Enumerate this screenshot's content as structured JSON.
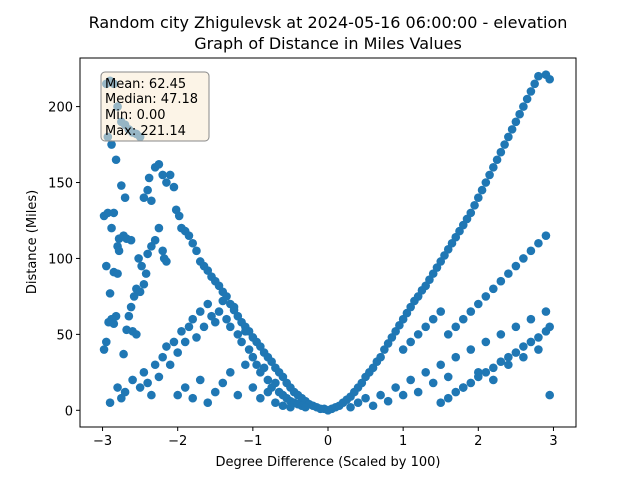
{
  "chart_data": {
    "type": "scatter",
    "title": "Random city Zhigulevsk at 2024-05-16 06:00:00  - elevation",
    "subtitle": "Graph of Distance in Miles Values",
    "xlabel": "Degree Difference (Scaled by 100)",
    "ylabel": "Distance (Miles)",
    "xlim": [
      -3.3,
      3.3
    ],
    "ylim": [
      -11,
      232
    ],
    "x_ticks": [
      -3,
      -2,
      -1,
      0,
      1,
      2,
      3
    ],
    "y_ticks": [
      0,
      50,
      100,
      150,
      200
    ],
    "grid": false,
    "marker_color": "#1f77b4",
    "stats_box": {
      "lines": [
        "Mean: 62.45",
        "Median: 47.18",
        "Min: 0.00",
        "Max: 221.14"
      ],
      "placement": "top-left",
      "facecolor": "#f9ebd3",
      "edgecolor": "#888888"
    },
    "series": [
      {
        "points": [
          [
            -2.95,
            215
          ],
          [
            -2.9,
            217
          ],
          [
            -2.85,
            215
          ],
          [
            -2.8,
            200
          ],
          [
            -2.75,
            190
          ],
          [
            -2.7,
            188
          ],
          [
            -2.65,
            185
          ],
          [
            -2.6,
            183
          ],
          [
            -2.55,
            182
          ],
          [
            -2.5,
            180
          ],
          [
            -2.93,
            180
          ],
          [
            -2.88,
            175
          ],
          [
            -2.82,
            165
          ],
          [
            -2.75,
            148
          ],
          [
            -2.7,
            140
          ],
          [
            -2.98,
            128
          ],
          [
            -2.93,
            130
          ],
          [
            -2.88,
            120
          ],
          [
            -2.85,
            130
          ],
          [
            -2.78,
            113
          ],
          [
            -2.72,
            115
          ],
          [
            -2.68,
            113
          ],
          [
            -2.62,
            112
          ],
          [
            -2.8,
            108
          ],
          [
            -2.78,
            105
          ],
          [
            -2.95,
            95
          ],
          [
            -2.85,
            91
          ],
          [
            -2.8,
            90
          ],
          [
            -2.9,
            77
          ],
          [
            -2.82,
            62
          ],
          [
            -2.88,
            60
          ],
          [
            -2.92,
            58
          ],
          [
            -2.85,
            57
          ],
          [
            -2.95,
            45
          ],
          [
            -2.98,
            40
          ],
          [
            -2.72,
            37
          ],
          [
            -2.68,
            53
          ],
          [
            -2.6,
            52
          ],
          [
            -2.55,
            50
          ],
          [
            -2.65,
            62
          ],
          [
            -2.62,
            68
          ],
          [
            -2.58,
            75
          ],
          [
            -2.55,
            80
          ],
          [
            -2.5,
            78
          ],
          [
            -2.45,
            83
          ],
          [
            -2.42,
            90
          ],
          [
            -2.48,
            95
          ],
          [
            -2.52,
            100
          ],
          [
            -2.4,
            103
          ],
          [
            -2.35,
            108
          ],
          [
            -2.3,
            112
          ],
          [
            -2.25,
            120
          ],
          [
            -2.2,
            105
          ],
          [
            -2.18,
            100
          ],
          [
            -2.15,
            98
          ],
          [
            -2.45,
            140
          ],
          [
            -2.4,
            145
          ],
          [
            -2.38,
            153
          ],
          [
            -2.35,
            138
          ],
          [
            -2.3,
            160
          ],
          [
            -2.25,
            162
          ],
          [
            -2.2,
            155
          ],
          [
            -2.15,
            150
          ],
          [
            -2.1,
            155
          ],
          [
            -2.05,
            147
          ],
          [
            -2.02,
            132
          ],
          [
            -1.98,
            128
          ],
          [
            -1.95,
            120
          ],
          [
            -1.9,
            118
          ],
          [
            -1.85,
            115
          ],
          [
            -1.8,
            110
          ],
          [
            -1.75,
            105
          ],
          [
            -1.7,
            98
          ],
          [
            -1.65,
            95
          ],
          [
            -1.6,
            92
          ],
          [
            -1.55,
            88
          ],
          [
            -1.5,
            85
          ],
          [
            -1.45,
            82
          ],
          [
            -1.4,
            78
          ],
          [
            -1.35,
            75
          ],
          [
            -1.3,
            70
          ],
          [
            -1.25,
            66
          ],
          [
            -1.2,
            62
          ],
          [
            -1.15,
            58
          ],
          [
            -1.1,
            55
          ],
          [
            -1.05,
            52
          ],
          [
            -1.0,
            48
          ],
          [
            -0.95,
            45
          ],
          [
            -0.9,
            42
          ],
          [
            -0.85,
            38
          ],
          [
            -0.8,
            35
          ],
          [
            -0.75,
            32
          ],
          [
            -0.7,
            28
          ],
          [
            -0.65,
            25
          ],
          [
            -0.6,
            22
          ],
          [
            -0.55,
            18
          ],
          [
            -0.5,
            15
          ],
          [
            -0.45,
            12
          ],
          [
            -0.4,
            10
          ],
          [
            -0.35,
            8
          ],
          [
            -0.3,
            6
          ],
          [
            -0.25,
            4
          ],
          [
            -0.2,
            3
          ],
          [
            -0.15,
            2
          ],
          [
            -0.1,
            1
          ],
          [
            -0.05,
            1
          ],
          [
            0.0,
            0
          ],
          [
            -2.9,
            5
          ],
          [
            -2.8,
            15
          ],
          [
            -2.75,
            8
          ],
          [
            -2.7,
            12
          ],
          [
            -2.6,
            20
          ],
          [
            -2.5,
            15
          ],
          [
            -2.45,
            25
          ],
          [
            -2.4,
            18
          ],
          [
            -2.35,
            10
          ],
          [
            -2.3,
            30
          ],
          [
            -2.25,
            22
          ],
          [
            -2.2,
            35
          ],
          [
            -2.15,
            42
          ],
          [
            -2.1,
            30
          ],
          [
            -2.05,
            45
          ],
          [
            -2.0,
            38
          ],
          [
            -1.95,
            52
          ],
          [
            -1.9,
            45
          ],
          [
            -1.85,
            55
          ],
          [
            -1.8,
            60
          ],
          [
            -1.75,
            48
          ],
          [
            -1.7,
            65
          ],
          [
            -1.65,
            55
          ],
          [
            -1.6,
            70
          ],
          [
            -1.55,
            62
          ],
          [
            -1.5,
            58
          ],
          [
            -1.45,
            65
          ],
          [
            -1.4,
            72
          ],
          [
            -1.35,
            60
          ],
          [
            -1.3,
            55
          ],
          [
            -1.25,
            68
          ],
          [
            -1.2,
            50
          ],
          [
            -1.15,
            45
          ],
          [
            -1.1,
            52
          ],
          [
            -1.05,
            40
          ],
          [
            -1.0,
            35
          ],
          [
            -0.95,
            30
          ],
          [
            -0.9,
            25
          ],
          [
            -0.85,
            28
          ],
          [
            -0.8,
            20
          ],
          [
            -0.75,
            15
          ],
          [
            -0.7,
            18
          ],
          [
            -0.65,
            12
          ],
          [
            -0.6,
            10
          ],
          [
            -0.55,
            8
          ],
          [
            -0.5,
            6
          ],
          [
            -0.45,
            5
          ],
          [
            -0.4,
            4
          ],
          [
            -0.35,
            3
          ],
          [
            -0.3,
            2
          ],
          [
            -2.0,
            10
          ],
          [
            -1.9,
            15
          ],
          [
            -1.8,
            8
          ],
          [
            -1.7,
            20
          ],
          [
            -1.6,
            5
          ],
          [
            -1.5,
            12
          ],
          [
            -1.4,
            18
          ],
          [
            -1.3,
            25
          ],
          [
            -1.2,
            10
          ],
          [
            -1.1,
            30
          ],
          [
            -1.0,
            15
          ],
          [
            -0.9,
            8
          ],
          [
            -0.8,
            12
          ],
          [
            -0.7,
            5
          ],
          [
            -0.6,
            3
          ],
          [
            -0.5,
            2
          ],
          [
            0.05,
            1
          ],
          [
            0.1,
            2
          ],
          [
            0.15,
            3
          ],
          [
            0.2,
            5
          ],
          [
            0.25,
            7
          ],
          [
            0.3,
            9
          ],
          [
            0.35,
            12
          ],
          [
            0.4,
            15
          ],
          [
            0.45,
            18
          ],
          [
            0.5,
            22
          ],
          [
            0.55,
            25
          ],
          [
            0.6,
            28
          ],
          [
            0.65,
            32
          ],
          [
            0.7,
            35
          ],
          [
            0.75,
            40
          ],
          [
            0.8,
            44
          ],
          [
            0.85,
            48
          ],
          [
            0.9,
            52
          ],
          [
            0.95,
            56
          ],
          [
            1.0,
            60
          ],
          [
            1.05,
            64
          ],
          [
            1.1,
            68
          ],
          [
            1.15,
            72
          ],
          [
            1.2,
            75
          ],
          [
            1.25,
            79
          ],
          [
            1.3,
            82
          ],
          [
            1.35,
            86
          ],
          [
            1.4,
            90
          ],
          [
            1.45,
            94
          ],
          [
            1.5,
            98
          ],
          [
            1.55,
            102
          ],
          [
            1.6,
            106
          ],
          [
            1.65,
            110
          ],
          [
            1.7,
            114
          ],
          [
            1.75,
            118
          ],
          [
            1.8,
            122
          ],
          [
            1.85,
            126
          ],
          [
            1.9,
            130
          ],
          [
            1.95,
            135
          ],
          [
            2.0,
            140
          ],
          [
            2.05,
            145
          ],
          [
            2.1,
            150
          ],
          [
            2.15,
            155
          ],
          [
            2.2,
            160
          ],
          [
            2.25,
            165
          ],
          [
            2.3,
            170
          ],
          [
            2.35,
            175
          ],
          [
            2.4,
            180
          ],
          [
            2.45,
            185
          ],
          [
            2.5,
            190
          ],
          [
            2.55,
            195
          ],
          [
            2.6,
            200
          ],
          [
            2.65,
            205
          ],
          [
            2.7,
            210
          ],
          [
            2.75,
            215
          ],
          [
            2.8,
            220
          ],
          [
            2.9,
            221
          ],
          [
            2.95,
            218
          ],
          [
            0.3,
            2
          ],
          [
            0.4,
            5
          ],
          [
            0.5,
            8
          ],
          [
            0.6,
            3
          ],
          [
            0.7,
            10
          ],
          [
            0.8,
            6
          ],
          [
            0.9,
            15
          ],
          [
            1.0,
            10
          ],
          [
            1.1,
            20
          ],
          [
            1.2,
            12
          ],
          [
            1.3,
            25
          ],
          [
            1.4,
            18
          ],
          [
            1.5,
            30
          ],
          [
            1.6,
            22
          ],
          [
            1.7,
            35
          ],
          [
            1.8,
            15
          ],
          [
            1.9,
            40
          ],
          [
            2.0,
            25
          ],
          [
            2.1,
            45
          ],
          [
            2.2,
            20
          ],
          [
            2.3,
            50
          ],
          [
            2.4,
            30
          ],
          [
            2.5,
            55
          ],
          [
            2.6,
            35
          ],
          [
            2.7,
            60
          ],
          [
            2.8,
            40
          ],
          [
            2.9,
            65
          ],
          [
            2.95,
            10
          ],
          [
            1.0,
            40
          ],
          [
            1.1,
            45
          ],
          [
            1.2,
            50
          ],
          [
            1.3,
            55
          ],
          [
            1.4,
            60
          ],
          [
            1.5,
            65
          ],
          [
            1.6,
            50
          ],
          [
            1.7,
            55
          ],
          [
            1.8,
            60
          ],
          [
            1.9,
            65
          ],
          [
            2.0,
            70
          ],
          [
            2.1,
            75
          ],
          [
            2.2,
            80
          ],
          [
            2.3,
            85
          ],
          [
            2.4,
            90
          ],
          [
            2.5,
            95
          ],
          [
            2.6,
            100
          ],
          [
            2.7,
            105
          ],
          [
            2.8,
            110
          ],
          [
            2.9,
            115
          ],
          [
            1.5,
            5
          ],
          [
            1.6,
            8
          ],
          [
            1.7,
            12
          ],
          [
            1.8,
            15
          ],
          [
            1.9,
            18
          ],
          [
            2.0,
            22
          ],
          [
            2.1,
            25
          ],
          [
            2.2,
            28
          ],
          [
            2.3,
            32
          ],
          [
            2.4,
            35
          ],
          [
            2.5,
            38
          ],
          [
            2.6,
            42
          ],
          [
            2.7,
            45
          ],
          [
            2.8,
            48
          ],
          [
            2.9,
            52
          ],
          [
            2.95,
            55
          ]
        ]
      }
    ]
  }
}
